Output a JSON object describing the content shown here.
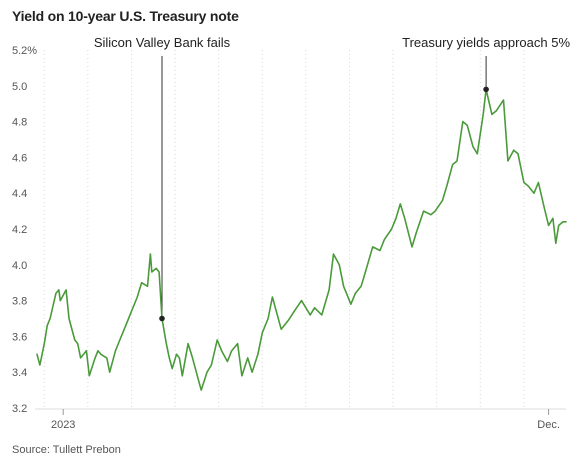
{
  "chart_data": {
    "type": "line",
    "title": "Yield on 10-year U.S. Treasury note",
    "source": "Source: Tullett Prebon",
    "ylim": [
      3.2,
      5.2
    ],
    "yticks": [
      {
        "value": 5.2,
        "label": "5.2%"
      },
      {
        "value": 5.0,
        "label": "5.0"
      },
      {
        "value": 4.8,
        "label": "4.8"
      },
      {
        "value": 4.6,
        "label": "4.6"
      },
      {
        "value": 4.4,
        "label": "4.4"
      },
      {
        "value": 4.2,
        "label": "4.2"
      },
      {
        "value": 4.0,
        "label": "4.0"
      },
      {
        "value": 3.8,
        "label": "3.8"
      },
      {
        "value": 3.6,
        "label": "3.6"
      },
      {
        "value": 3.4,
        "label": "3.4"
      },
      {
        "value": 3.2,
        "label": "3.2"
      }
    ],
    "xlim": [
      "2022-12-14",
      "2023-12-13"
    ],
    "xticks": [
      {
        "date": "2023-01-01",
        "label": "2023"
      },
      {
        "date": "2023-12-01",
        "label": "Dec."
      }
    ],
    "grid": "vertical-dotted",
    "line_color": "#4a9a3a",
    "series": [
      {
        "values": [
          [
            "2022-12-14",
            3.5
          ],
          [
            "2022-12-16",
            3.44
          ],
          [
            "2022-12-19",
            3.56
          ],
          [
            "2022-12-21",
            3.66
          ],
          [
            "2022-12-23",
            3.7
          ],
          [
            "2022-12-27",
            3.84
          ],
          [
            "2022-12-29",
            3.86
          ],
          [
            "2022-12-30",
            3.8
          ],
          [
            "2023-01-03",
            3.86
          ],
          [
            "2023-01-05",
            3.7
          ],
          [
            "2023-01-09",
            3.58
          ],
          [
            "2023-01-11",
            3.56
          ],
          [
            "2023-01-13",
            3.48
          ],
          [
            "2023-01-17",
            3.52
          ],
          [
            "2023-01-19",
            3.38
          ],
          [
            "2023-01-23",
            3.48
          ],
          [
            "2023-01-25",
            3.52
          ],
          [
            "2023-01-27",
            3.5
          ],
          [
            "2023-01-31",
            3.48
          ],
          [
            "2023-02-02",
            3.4
          ],
          [
            "2023-02-06",
            3.52
          ],
          [
            "2023-02-09",
            3.58
          ],
          [
            "2023-02-13",
            3.66
          ],
          [
            "2023-02-16",
            3.72
          ],
          [
            "2023-02-21",
            3.82
          ],
          [
            "2023-02-24",
            3.9
          ],
          [
            "2023-02-28",
            3.88
          ],
          [
            "2023-03-02",
            4.06
          ],
          [
            "2023-03-03",
            3.96
          ],
          [
            "2023-03-06",
            3.98
          ],
          [
            "2023-03-08",
            3.96
          ],
          [
            "2023-03-10",
            3.7
          ],
          [
            "2023-03-13",
            3.56
          ],
          [
            "2023-03-15",
            3.48
          ],
          [
            "2023-03-17",
            3.42
          ],
          [
            "2023-03-20",
            3.5
          ],
          [
            "2023-03-22",
            3.48
          ],
          [
            "2023-03-24",
            3.38
          ],
          [
            "2023-03-28",
            3.56
          ],
          [
            "2023-03-31",
            3.48
          ],
          [
            "2023-04-04",
            3.36
          ],
          [
            "2023-04-06",
            3.3
          ],
          [
            "2023-04-10",
            3.4
          ],
          [
            "2023-04-13",
            3.44
          ],
          [
            "2023-04-17",
            3.58
          ],
          [
            "2023-04-20",
            3.52
          ],
          [
            "2023-04-24",
            3.46
          ],
          [
            "2023-04-27",
            3.52
          ],
          [
            "2023-05-01",
            3.56
          ],
          [
            "2023-05-04",
            3.38
          ],
          [
            "2023-05-08",
            3.48
          ],
          [
            "2023-05-11",
            3.4
          ],
          [
            "2023-05-15",
            3.5
          ],
          [
            "2023-05-18",
            3.62
          ],
          [
            "2023-05-22",
            3.7
          ],
          [
            "2023-05-25",
            3.82
          ],
          [
            "2023-05-31",
            3.64
          ],
          [
            "2023-06-05",
            3.69
          ],
          [
            "2023-06-09",
            3.74
          ],
          [
            "2023-06-14",
            3.8
          ],
          [
            "2023-06-20",
            3.72
          ],
          [
            "2023-06-23",
            3.76
          ],
          [
            "2023-06-28",
            3.72
          ],
          [
            "2023-07-03",
            3.86
          ],
          [
            "2023-07-06",
            4.06
          ],
          [
            "2023-07-10",
            4.0
          ],
          [
            "2023-07-13",
            3.88
          ],
          [
            "2023-07-18",
            3.78
          ],
          [
            "2023-07-21",
            3.84
          ],
          [
            "2023-07-25",
            3.88
          ],
          [
            "2023-07-28",
            3.96
          ],
          [
            "2023-08-02",
            4.1
          ],
          [
            "2023-08-07",
            4.08
          ],
          [
            "2023-08-10",
            4.14
          ],
          [
            "2023-08-15",
            4.2
          ],
          [
            "2023-08-18",
            4.26
          ],
          [
            "2023-08-21",
            4.34
          ],
          [
            "2023-08-24",
            4.26
          ],
          [
            "2023-08-29",
            4.1
          ],
          [
            "2023-09-01",
            4.18
          ],
          [
            "2023-09-06",
            4.3
          ],
          [
            "2023-09-11",
            4.28
          ],
          [
            "2023-09-14",
            4.3
          ],
          [
            "2023-09-19",
            4.36
          ],
          [
            "2023-09-22",
            4.44
          ],
          [
            "2023-09-26",
            4.56
          ],
          [
            "2023-09-29",
            4.58
          ],
          [
            "2023-10-03",
            4.8
          ],
          [
            "2023-10-06",
            4.78
          ],
          [
            "2023-10-10",
            4.66
          ],
          [
            "2023-10-13",
            4.62
          ],
          [
            "2023-10-17",
            4.84
          ],
          [
            "2023-10-19",
            4.98
          ],
          [
            "2023-10-23",
            4.84
          ],
          [
            "2023-10-26",
            4.86
          ],
          [
            "2023-10-31",
            4.92
          ],
          [
            "2023-11-03",
            4.58
          ],
          [
            "2023-11-07",
            4.64
          ],
          [
            "2023-11-10",
            4.62
          ],
          [
            "2023-11-14",
            4.46
          ],
          [
            "2023-11-17",
            4.44
          ],
          [
            "2023-11-21",
            4.4
          ],
          [
            "2023-11-24",
            4.46
          ],
          [
            "2023-11-28",
            4.32
          ],
          [
            "2023-12-01",
            4.22
          ],
          [
            "2023-12-04",
            4.26
          ],
          [
            "2023-12-06",
            4.12
          ],
          [
            "2023-12-08",
            4.22
          ],
          [
            "2023-12-11",
            4.24
          ],
          [
            "2023-12-13",
            4.24
          ]
        ]
      }
    ],
    "annotations": [
      {
        "label": "Silicon Valley Bank fails",
        "date": "2023-03-10",
        "value": 3.7
      },
      {
        "label": "Treasury yields approach 5%",
        "date": "2023-10-19",
        "value": 4.98
      }
    ]
  }
}
